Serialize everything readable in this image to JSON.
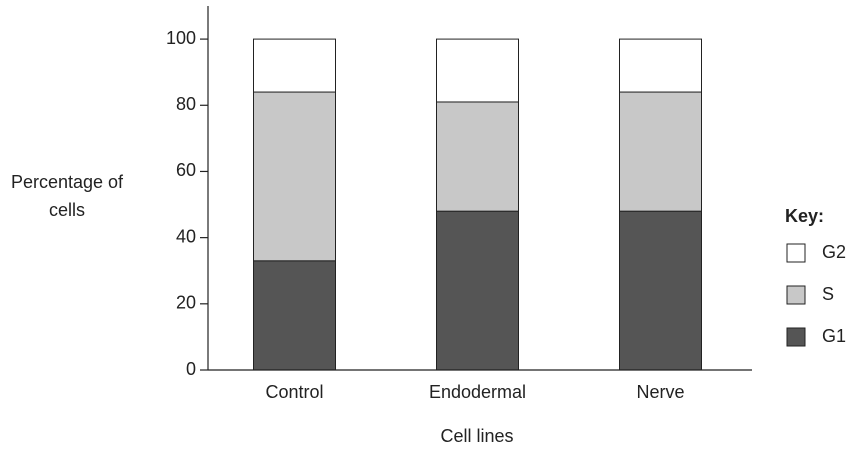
{
  "chart_data": {
    "type": "stacked_bar",
    "categories": [
      "Control",
      "Endodermal",
      "Nerve"
    ],
    "series": [
      {
        "name": "G1",
        "color": "#555555",
        "values": [
          33,
          48,
          48
        ]
      },
      {
        "name": "S",
        "color": "#c8c8c8",
        "values": [
          51,
          33,
          36
        ]
      },
      {
        "name": "G2",
        "color": "#ffffff",
        "values": [
          16,
          19,
          16
        ]
      }
    ],
    "ylim": [
      0,
      110
    ],
    "yticks": [
      0,
      20,
      40,
      60,
      80,
      100
    ],
    "xlabel": "Cell lines",
    "ylabel": "Percentage of cells",
    "legend_title": "Key:",
    "legend": "right",
    "grid": false
  }
}
